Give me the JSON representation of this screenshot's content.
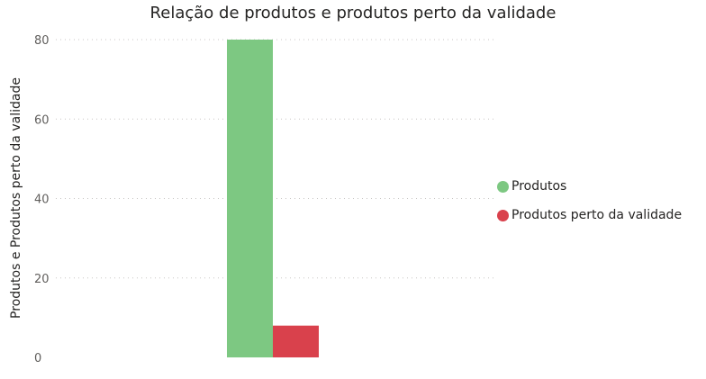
{
  "chart_data": {
    "type": "bar",
    "title": "Relação de produtos e produtos perto da validade",
    "xlabel": "",
    "ylabel": "Produtos e Produtos perto da validade",
    "categories": [
      ""
    ],
    "series": [
      {
        "name": "Produtos",
        "values": [
          80
        ],
        "color": "#7dc882"
      },
      {
        "name": "Produtos perto da validade",
        "values": [
          8
        ],
        "color": "#d9414c"
      }
    ],
    "ylim": [
      0,
      80
    ],
    "yticks": [
      "0",
      "20",
      "40",
      "60",
      "80"
    ],
    "grid": true,
    "legend_position": "right"
  }
}
